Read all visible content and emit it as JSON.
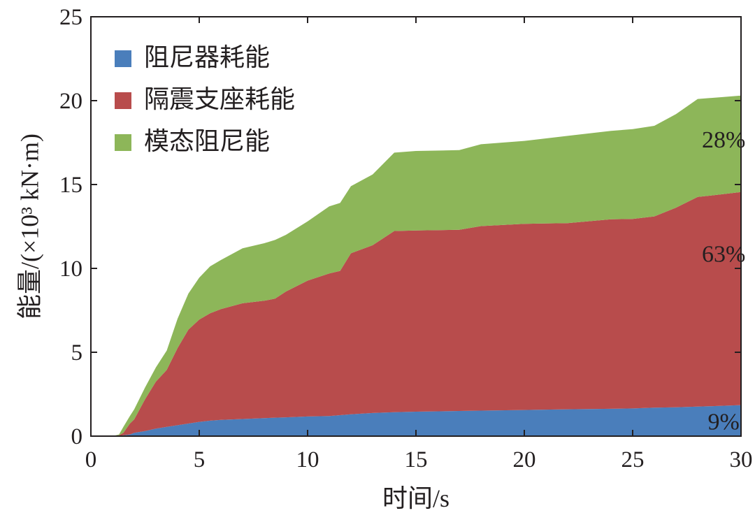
{
  "chart_data": {
    "type": "area",
    "stacked": true,
    "xlabel": "时间/s",
    "ylabel": "能量/(×10³ kN·m)",
    "xlim": [
      0,
      30
    ],
    "ylim": [
      0,
      25
    ],
    "xticks": [
      "0",
      "5",
      "10",
      "15",
      "20",
      "25",
      "30"
    ],
    "yticks": [
      "0",
      "5",
      "10",
      "15",
      "20",
      "25"
    ],
    "grid": false,
    "legend_position": "top-left",
    "x": [
      0,
      1.0,
      1.3,
      1.5,
      1.8,
      2.0,
      2.5,
      3.0,
      3.5,
      4.0,
      4.5,
      5.0,
      5.5,
      6.0,
      7.0,
      8.0,
      8.5,
      9.0,
      10.0,
      11.0,
      11.5,
      12.0,
      13.0,
      14.0,
      15.0,
      17.0,
      18.0,
      20.0,
      22.0,
      24.0,
      25.0,
      26.0,
      27.0,
      28.0,
      29.0,
      30.0
    ],
    "series": [
      {
        "name": "阻尼器耗能",
        "color": "#4a7ebb",
        "values": [
          0,
          0,
          0.02,
          0.05,
          0.1,
          0.2,
          0.3,
          0.45,
          0.55,
          0.65,
          0.75,
          0.85,
          0.92,
          0.97,
          1.02,
          1.07,
          1.1,
          1.12,
          1.17,
          1.2,
          1.25,
          1.3,
          1.38,
          1.43,
          1.46,
          1.5,
          1.52,
          1.56,
          1.6,
          1.63,
          1.65,
          1.7,
          1.72,
          1.76,
          1.8,
          1.85
        ]
      },
      {
        "name": "隔震支座耗能",
        "color": "#b84c4c",
        "values": [
          0,
          0,
          0.03,
          0.15,
          0.65,
          0.8,
          1.9,
          2.8,
          3.4,
          4.6,
          5.6,
          6.1,
          6.4,
          6.6,
          6.9,
          7.0,
          7.1,
          7.5,
          8.1,
          8.5,
          8.6,
          9.6,
          10.0,
          10.8,
          10.8,
          10.8,
          11.0,
          11.1,
          11.1,
          11.3,
          11.3,
          11.4,
          11.9,
          12.5,
          12.6,
          12.7
        ]
      },
      {
        "name": "模态阻尼能",
        "color": "#8db659",
        "values": [
          0,
          0,
          0.05,
          0.35,
          0.45,
          0.6,
          0.7,
          0.85,
          1.15,
          1.75,
          2.15,
          2.5,
          2.8,
          2.93,
          3.28,
          3.43,
          3.5,
          3.38,
          3.53,
          4.0,
          4.05,
          4.0,
          4.22,
          4.67,
          4.74,
          4.75,
          4.88,
          4.94,
          5.2,
          5.27,
          5.35,
          5.4,
          5.58,
          5.84,
          5.8,
          5.75
        ]
      }
    ],
    "annotations": [
      {
        "text": "28%",
        "x": 29.2,
        "y": 17.2
      },
      {
        "text": "63%",
        "x": 29.2,
        "y": 10.4
      },
      {
        "text": "9%",
        "x": 29.2,
        "y": 0.4
      }
    ]
  }
}
